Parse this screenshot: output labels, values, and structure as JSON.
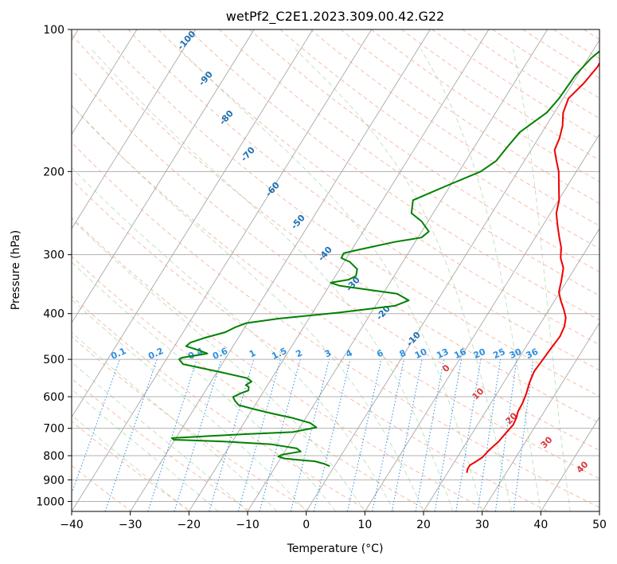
{
  "chart_data": {
    "type": "line",
    "title": "wetPf2_C2E1.2023.309.00.42.G22",
    "xlabel": "Temperature (°C)",
    "ylabel": "Pressure (hPa)",
    "xlim": [
      -40,
      50
    ],
    "ylim": [
      1050,
      100
    ],
    "y_scale": "log",
    "x_ticks": [
      "−40",
      "−30",
      "−20",
      "−10",
      "0",
      "10",
      "20",
      "30",
      "40",
      "50"
    ],
    "y_ticks": [
      "100",
      "200",
      "300",
      "400",
      "500",
      "600",
      "700",
      "800",
      "900",
      "1000"
    ],
    "grid": true,
    "dry_adiabat_labels": [
      "-100",
      "-90",
      "-80",
      "-70",
      "-60",
      "-50",
      "-40",
      "-30",
      "-20",
      "-10"
    ],
    "moist_adiabat_labels": [
      "0",
      "10",
      "20",
      "30",
      "40"
    ],
    "mixing_ratio_labels": [
      "0.1",
      "0.2",
      "0.4",
      "0.6",
      "1",
      "1.5",
      "2",
      "3",
      "4",
      "6",
      "8",
      "10",
      "13",
      "16",
      "20",
      "25",
      "30",
      "36"
    ],
    "series": [
      {
        "color": "#ee0000",
        "points": [
          [
            3.8,
            100
          ],
          [
            2.3,
            110
          ],
          [
            2.5,
            120
          ],
          [
            1.9,
            130
          ],
          [
            0.9,
            140
          ],
          [
            1.5,
            150
          ],
          [
            2.8,
            160
          ],
          [
            3.6,
            170
          ],
          [
            4.0,
            180
          ],
          [
            5.5,
            190
          ],
          [
            7.0,
            200
          ],
          [
            8.6,
            215
          ],
          [
            10.1,
            230
          ],
          [
            11.0,
            245
          ],
          [
            12.5,
            260
          ],
          [
            14.0,
            275
          ],
          [
            15.5,
            290
          ],
          [
            16.5,
            305
          ],
          [
            18.0,
            320
          ],
          [
            19.0,
            340
          ],
          [
            19.8,
            360
          ],
          [
            21.0,
            375
          ],
          [
            22.5,
            392
          ],
          [
            23.7,
            408
          ],
          [
            24.4,
            426
          ],
          [
            24.7,
            447
          ],
          [
            24.4,
            477
          ],
          [
            24.2,
            505
          ],
          [
            24.0,
            530
          ],
          [
            24.4,
            560
          ],
          [
            25.0,
            590
          ],
          [
            25.4,
            620
          ],
          [
            25.5,
            645
          ],
          [
            25.9,
            665
          ],
          [
            26.1,
            688
          ],
          [
            25.7,
            718
          ],
          [
            25.4,
            746
          ],
          [
            24.7,
            777
          ],
          [
            24.3,
            806
          ],
          [
            23.6,
            825
          ],
          [
            23.0,
            838
          ],
          [
            23.0,
            853
          ],
          [
            23.3,
            870
          ]
        ]
      },
      {
        "color": "#008000",
        "points": [
          [
            3.3,
            100
          ],
          [
            1.4,
            110
          ],
          [
            0.5,
            115
          ],
          [
            -0.4,
            125
          ],
          [
            -0.7,
            140
          ],
          [
            -1.3,
            150
          ],
          [
            -3.8,
            165
          ],
          [
            -4.4,
            178
          ],
          [
            -4.8,
            190
          ],
          [
            -6.3,
            200
          ],
          [
            -10.8,
            215
          ],
          [
            -14.8,
            230
          ],
          [
            -13.7,
            245
          ],
          [
            -11.1,
            255
          ],
          [
            -8.8,
            268
          ],
          [
            -9.4,
            276
          ],
          [
            -13.5,
            282
          ],
          [
            -18.9,
            293
          ],
          [
            -21.0,
            298
          ],
          [
            -20.9,
            305
          ],
          [
            -19.0,
            311
          ],
          [
            -17.0,
            322
          ],
          [
            -16.5,
            333
          ],
          [
            -17.4,
            339
          ],
          [
            -20.1,
            344
          ],
          [
            -18.3,
            349
          ],
          [
            -12.9,
            356
          ],
          [
            -7.6,
            363
          ],
          [
            -4.9,
            375
          ],
          [
            -6.7,
            385
          ],
          [
            -15.5,
            398
          ],
          [
            -25.2,
            410
          ],
          [
            -30.2,
            419
          ],
          [
            -31.7,
            428
          ],
          [
            -32.8,
            438
          ],
          [
            -35.7,
            450
          ],
          [
            -37.7,
            461
          ],
          [
            -38.0,
            469
          ],
          [
            -35.5,
            478
          ],
          [
            -33.6,
            486
          ],
          [
            -37.5,
            496
          ],
          [
            -37.8,
            500
          ],
          [
            -36.6,
            512
          ],
          [
            -29.4,
            532
          ],
          [
            -24.2,
            548
          ],
          [
            -23.1,
            557
          ],
          [
            -23.7,
            567
          ],
          [
            -23.0,
            572
          ],
          [
            -22.7,
            582
          ],
          [
            -23.7,
            590
          ],
          [
            -24.6,
            601
          ],
          [
            -23.9,
            612
          ],
          [
            -22.8,
            625
          ],
          [
            -19.9,
            637
          ],
          [
            -16.0,
            652
          ],
          [
            -12.1,
            666
          ],
          [
            -8.7,
            682
          ],
          [
            -7.2,
            697
          ],
          [
            -10.7,
            713
          ],
          [
            -18.3,
            720
          ],
          [
            -25.5,
            728
          ],
          [
            -30.7,
            734
          ],
          [
            -30.2,
            740
          ],
          [
            -21.8,
            746
          ],
          [
            -13.0,
            757
          ],
          [
            -8.3,
            772
          ],
          [
            -7.3,
            784
          ],
          [
            -10.1,
            796
          ],
          [
            -10.6,
            803
          ],
          [
            -9.4,
            811
          ],
          [
            -6.7,
            817
          ],
          [
            -3.9,
            822
          ],
          [
            -1.9,
            833
          ],
          [
            -0.8,
            842
          ]
        ]
      }
    ]
  }
}
